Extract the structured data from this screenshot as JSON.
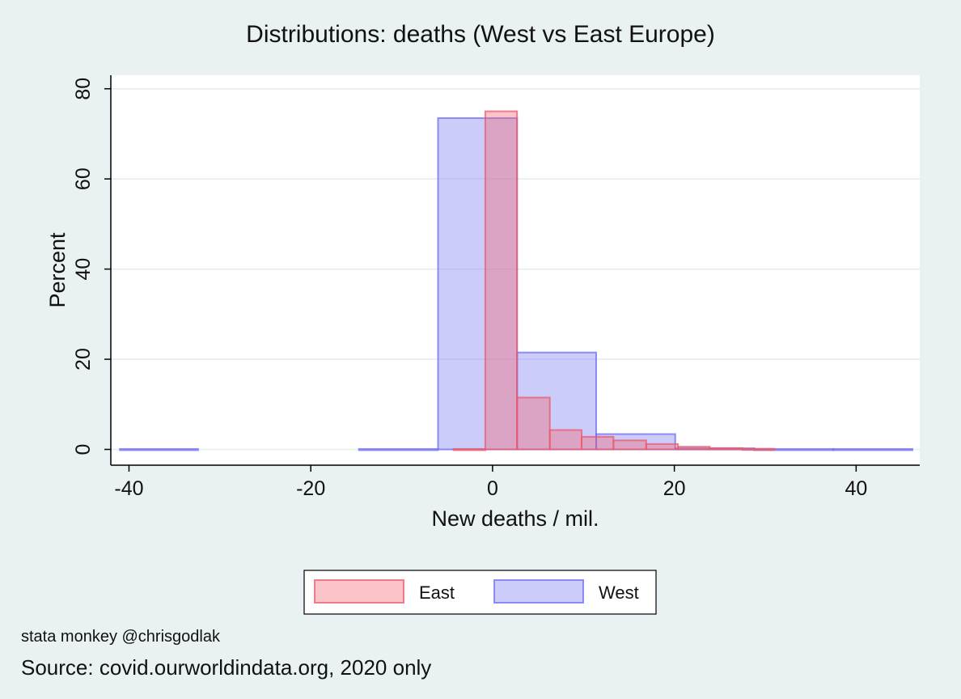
{
  "chart_data": {
    "type": "histogram",
    "title": "Distributions: deaths (West vs East Europe)",
    "xlabel": "New deaths / mil.",
    "ylabel": "Percent",
    "xlim": [
      -42,
      47
    ],
    "ylim": [
      -3.5,
      83
    ],
    "xticks": [
      -40,
      -20,
      0,
      20,
      40
    ],
    "yticks": [
      0,
      20,
      40,
      60,
      80
    ],
    "grid": true,
    "legend_position": "bottom",
    "series": [
      {
        "name": "East",
        "color": "#f5a0a8",
        "bins": [
          {
            "x0": -4.3,
            "x1": -0.8,
            "value": 0.1
          },
          {
            "x0": -0.8,
            "x1": 2.7,
            "value": 75
          },
          {
            "x0": 2.7,
            "x1": 6.3,
            "value": 11.5
          },
          {
            "x0": 6.3,
            "x1": 9.8,
            "value": 4.3
          },
          {
            "x0": 9.8,
            "x1": 13.3,
            "value": 2.8
          },
          {
            "x0": 13.3,
            "x1": 16.9,
            "value": 2.0
          },
          {
            "x0": 16.9,
            "x1": 20.4,
            "value": 1.2
          },
          {
            "x0": 20.4,
            "x1": 23.9,
            "value": 0.6
          },
          {
            "x0": 23.9,
            "x1": 27.5,
            "value": 0.3
          },
          {
            "x0": 27.5,
            "x1": 31.0,
            "value": 0.15
          }
        ]
      },
      {
        "name": "West",
        "color": "#a8a8f5",
        "bins": [
          {
            "x0": -41.0,
            "x1": -32.4,
            "value": 0.1
          },
          {
            "x0": -14.7,
            "x1": -6.0,
            "value": 0.1
          },
          {
            "x0": -6.0,
            "x1": 2.7,
            "value": 73.5
          },
          {
            "x0": 2.7,
            "x1": 11.4,
            "value": 21.5
          },
          {
            "x0": 11.4,
            "x1": 20.1,
            "value": 3.4
          },
          {
            "x0": 20.1,
            "x1": 28.8,
            "value": 0.25
          },
          {
            "x0": 28.8,
            "x1": 37.5,
            "value": 0.1
          },
          {
            "x0": 37.5,
            "x1": 46.2,
            "value": 0.1
          }
        ]
      }
    ]
  },
  "footer": {
    "note1": "stata monkey @chrisgodlak",
    "note2": "Source: covid.ourworldindata.org, 2020 only"
  }
}
